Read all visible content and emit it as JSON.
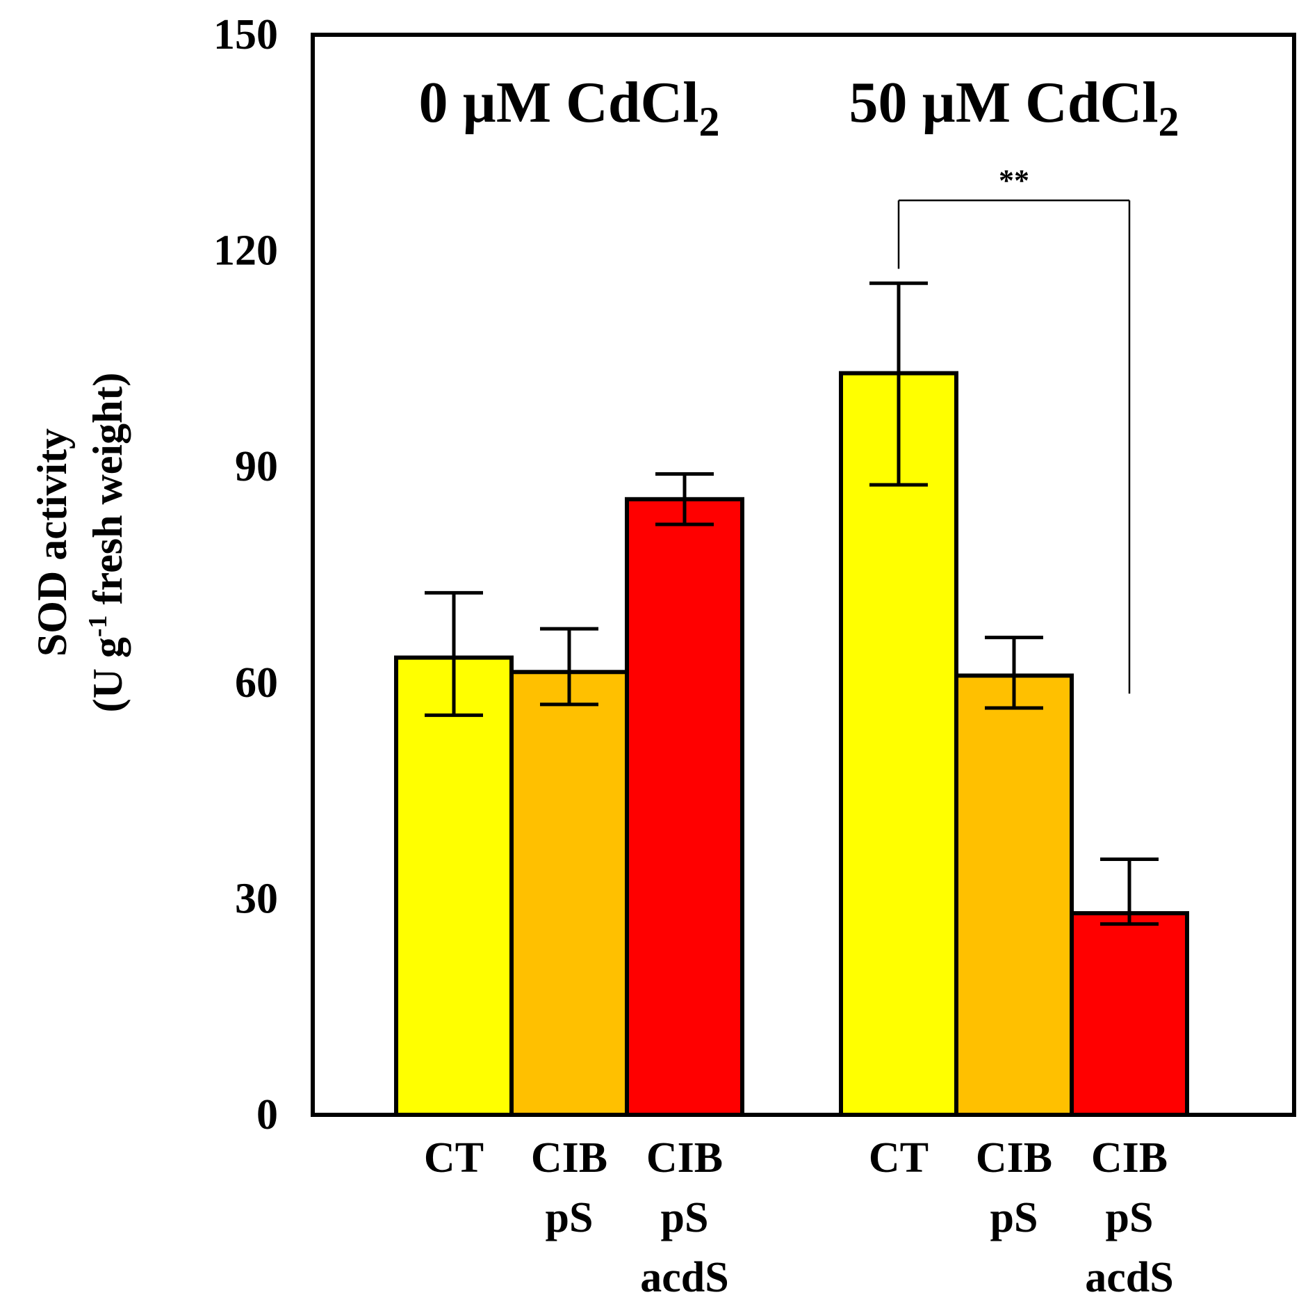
{
  "chart_data": {
    "type": "bar",
    "ylabel_line1": "SOD activity",
    "ylabel_line2_prefix": "(U g",
    "ylabel_line2_sup": "-1",
    "ylabel_line2_suffix": " fresh weight)",
    "ylim": [
      0,
      150
    ],
    "yticks": [
      "0",
      "30",
      "60",
      "90",
      "120",
      "150"
    ],
    "ytick_values": [
      0,
      30,
      60,
      90,
      120,
      150
    ],
    "colors": {
      "CT": "#ffff00",
      "CIB pS": "#ffc000",
      "CIB pS acdS": "#ff0000"
    },
    "groups": [
      {
        "title_main": "0 µM CdCl",
        "title_sub": "2",
        "bars": [
          {
            "key": "CT",
            "label_lines": [
              "CT"
            ],
            "value": 63.5,
            "err_low": 55.5,
            "err_high": 72.5
          },
          {
            "key": "CIB pS",
            "label_lines": [
              "CIB",
              "pS"
            ],
            "value": 61.5,
            "err_low": 57.0,
            "err_high": 67.5
          },
          {
            "key": "CIB pS acdS",
            "label_lines": [
              "CIB",
              "pS",
              "acdS"
            ],
            "value": 85.5,
            "err_low": 82.0,
            "err_high": 89.0
          }
        ]
      },
      {
        "title_main": "50 µM CdCl",
        "title_sub": "2",
        "bars": [
          {
            "key": "CT",
            "label_lines": [
              "CT"
            ],
            "value": 103.0,
            "err_low": 87.5,
            "err_high": 115.5
          },
          {
            "key": "CIB pS",
            "label_lines": [
              "CIB",
              "pS"
            ],
            "value": 61.0,
            "err_low": 56.5,
            "err_high": 66.3
          },
          {
            "key": "CIB pS acdS",
            "label_lines": [
              "CIB",
              "pS",
              "acdS"
            ],
            "value": 28.0,
            "err_low": 26.5,
            "err_high": 35.5
          }
        ]
      }
    ],
    "significance": {
      "group": 1,
      "from_bar": 0,
      "to_bar": 2,
      "label": "**",
      "bracket_value": 127.0,
      "left_end_value": 117.5,
      "right_end_value": 58.5
    }
  }
}
